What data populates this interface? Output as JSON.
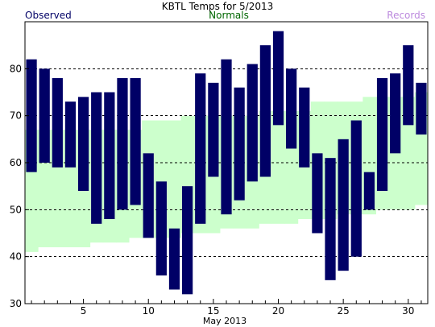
{
  "chart_data": {
    "type": "bar",
    "title": "KBTL Temps for 5/2013",
    "xlabel": "May 2013",
    "ylabel": "",
    "ylim": [
      30,
      90
    ],
    "yticks": [
      30,
      40,
      50,
      60,
      70,
      80
    ],
    "xlim": [
      0.5,
      31.5
    ],
    "xticks": [
      5,
      10,
      15,
      20,
      25,
      30
    ],
    "grid": "horizontal dashed at 40, 50, 60, 70, 80",
    "legend": [
      {
        "label": "Observed",
        "color": "#000066",
        "position": "top-left"
      },
      {
        "label": "Normals",
        "color": "#006600",
        "position": "top-center"
      },
      {
        "label": "Records",
        "color": "#bb88dd",
        "position": "top-right"
      }
    ],
    "days": [
      1,
      2,
      3,
      4,
      5,
      6,
      7,
      8,
      9,
      10,
      11,
      12,
      13,
      14,
      15,
      16,
      17,
      18,
      19,
      20,
      21,
      22,
      23,
      24,
      25,
      26,
      27,
      28,
      29,
      30,
      31
    ],
    "series": [
      {
        "name": "Observed",
        "color": "#000066",
        "high": [
          82,
          80,
          78,
          73,
          74,
          75,
          75,
          78,
          78,
          62,
          56,
          46,
          55,
          79,
          77,
          82,
          76,
          81,
          85,
          88,
          80,
          76,
          62,
          61,
          65,
          69,
          58,
          78,
          79,
          85,
          77
        ],
        "low": [
          58,
          60,
          59,
          59,
          54,
          47,
          48,
          50,
          51,
          44,
          36,
          33,
          32,
          47,
          57,
          49,
          52,
          56,
          57,
          68,
          63,
          59,
          45,
          35,
          37,
          40,
          50,
          54,
          62,
          68,
          66
        ]
      },
      {
        "name": "Normals",
        "color": "#ccffcc",
        "high": [
          67,
          67,
          67,
          67,
          67,
          67,
          67,
          67,
          67,
          69,
          69,
          69,
          70,
          70,
          70,
          70,
          70,
          70,
          71,
          71,
          71,
          71,
          73,
          73,
          73,
          73,
          74,
          74,
          74,
          74,
          75
        ],
        "low": [
          41,
          42,
          42,
          42,
          42,
          43,
          43,
          43,
          44,
          44,
          44,
          44,
          45,
          45,
          45,
          46,
          46,
          46,
          47,
          47,
          47,
          48,
          48,
          48,
          49,
          49,
          49,
          50,
          50,
          50,
          51
        ]
      }
    ]
  }
}
